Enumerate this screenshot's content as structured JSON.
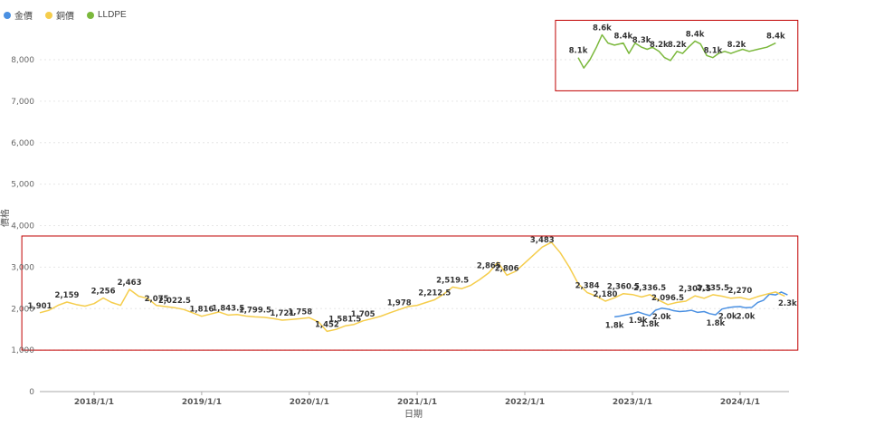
{
  "chart_data": {
    "type": "line",
    "xlabel": "日期",
    "ylabel": "價格",
    "xlim": [
      "2017-07-01",
      "2024-06-15"
    ],
    "ylim": [
      0,
      8000
    ],
    "yticks": [
      0,
      1000,
      2000,
      3000,
      4000,
      5000,
      6000,
      7000,
      8000
    ],
    "ytick_labels": [
      "0",
      "1,000",
      "2,000",
      "3,000",
      "4,000",
      "5,000",
      "6,000",
      "7,000",
      "8,000"
    ],
    "xticks": [
      "2018-01-01",
      "2019-01-01",
      "2020-01-01",
      "2021-01-01",
      "2022-01-01",
      "2023-01-01",
      "2024-01-01"
    ],
    "xtick_labels": [
      "2018/1/1",
      "2019/1/1",
      "2020/1/1",
      "2021/1/1",
      "2022/1/1",
      "2023/1/1",
      "2024/1/1"
    ],
    "grid": true,
    "legend_position": "top-left",
    "series": [
      {
        "name": "金價",
        "color": "#4a90e2",
        "points": [
          [
            "2022-11-01",
            1800
          ],
          [
            "2022-11-20",
            1820
          ],
          [
            "2022-12-10",
            1850
          ],
          [
            "2023-01-01",
            1880
          ],
          [
            "2023-01-20",
            1920
          ],
          [
            "2023-02-10",
            1870
          ],
          [
            "2023-03-01",
            1830
          ],
          [
            "2023-03-20",
            1960
          ],
          [
            "2023-04-10",
            2010
          ],
          [
            "2023-05-01",
            1990
          ],
          [
            "2023-05-20",
            1950
          ],
          [
            "2023-06-10",
            1930
          ],
          [
            "2023-07-01",
            1940
          ],
          [
            "2023-07-20",
            1960
          ],
          [
            "2023-08-10",
            1910
          ],
          [
            "2023-09-01",
            1930
          ],
          [
            "2023-09-20",
            1880
          ],
          [
            "2023-10-10",
            1850
          ],
          [
            "2023-11-01",
            1990
          ],
          [
            "2023-11-20",
            2020
          ],
          [
            "2023-12-10",
            2040
          ],
          [
            "2024-01-01",
            2050
          ],
          [
            "2024-01-20",
            2020
          ],
          [
            "2024-02-10",
            2030
          ],
          [
            "2024-03-01",
            2150
          ],
          [
            "2024-03-20",
            2200
          ],
          [
            "2024-04-10",
            2350
          ],
          [
            "2024-05-01",
            2330
          ],
          [
            "2024-05-20",
            2400
          ],
          [
            "2024-06-10",
            2330
          ]
        ]
      },
      {
        "name": "銅價",
        "color": "#f5cd4c",
        "points": [
          [
            "2017-07-01",
            1901
          ],
          [
            "2017-08-01",
            1960
          ],
          [
            "2017-09-01",
            2080
          ],
          [
            "2017-10-01",
            2159
          ],
          [
            "2017-11-01",
            2100
          ],
          [
            "2017-12-01",
            2060
          ],
          [
            "2018-01-01",
            2120
          ],
          [
            "2018-02-01",
            2256
          ],
          [
            "2018-03-01",
            2150
          ],
          [
            "2018-04-01",
            2080
          ],
          [
            "2018-05-01",
            2463
          ],
          [
            "2018-06-01",
            2300
          ],
          [
            "2018-07-01",
            2250
          ],
          [
            "2018-08-01",
            2075
          ],
          [
            "2018-09-01",
            2050
          ],
          [
            "2018-10-01",
            2022.5
          ],
          [
            "2018-11-01",
            1980
          ],
          [
            "2018-12-01",
            1900
          ],
          [
            "2019-01-01",
            1816
          ],
          [
            "2019-02-01",
            1870
          ],
          [
            "2019-03-01",
            1920
          ],
          [
            "2019-04-01",
            1843.5
          ],
          [
            "2019-05-01",
            1860
          ],
          [
            "2019-06-01",
            1820
          ],
          [
            "2019-07-01",
            1799.5
          ],
          [
            "2019-08-01",
            1790
          ],
          [
            "2019-09-01",
            1760
          ],
          [
            "2019-10-01",
            1721
          ],
          [
            "2019-11-01",
            1740
          ],
          [
            "2019-12-01",
            1758
          ],
          [
            "2020-01-01",
            1780
          ],
          [
            "2020-02-01",
            1680
          ],
          [
            "2020-03-01",
            1452
          ],
          [
            "2020-04-01",
            1500
          ],
          [
            "2020-05-01",
            1581.5
          ],
          [
            "2020-06-01",
            1620
          ],
          [
            "2020-07-01",
            1705
          ],
          [
            "2020-08-01",
            1760
          ],
          [
            "2020-09-01",
            1820
          ],
          [
            "2020-10-01",
            1900
          ],
          [
            "2020-11-01",
            1978
          ],
          [
            "2020-12-01",
            2050
          ],
          [
            "2021-01-01",
            2080
          ],
          [
            "2021-02-01",
            2150
          ],
          [
            "2021-03-01",
            2212.5
          ],
          [
            "2021-04-01",
            2350
          ],
          [
            "2021-05-01",
            2519.5
          ],
          [
            "2021-06-01",
            2480
          ],
          [
            "2021-07-01",
            2560
          ],
          [
            "2021-08-01",
            2700
          ],
          [
            "2021-09-01",
            2865
          ],
          [
            "2021-10-01",
            3120
          ],
          [
            "2021-11-01",
            2806
          ],
          [
            "2021-12-01",
            2900
          ],
          [
            "2022-01-01",
            3100
          ],
          [
            "2022-02-01",
            3300
          ],
          [
            "2022-03-01",
            3483
          ],
          [
            "2022-04-01",
            3600
          ],
          [
            "2022-05-01",
            3350
          ],
          [
            "2022-06-01",
            3000
          ],
          [
            "2022-07-01",
            2600
          ],
          [
            "2022-08-01",
            2384
          ],
          [
            "2022-09-01",
            2300
          ],
          [
            "2022-10-01",
            2180
          ],
          [
            "2022-11-01",
            2260
          ],
          [
            "2022-12-01",
            2360.5
          ],
          [
            "2023-01-01",
            2340
          ],
          [
            "2023-02-01",
            2280
          ],
          [
            "2023-03-01",
            2336.5
          ],
          [
            "2023-04-01",
            2200
          ],
          [
            "2023-05-01",
            2096.5
          ],
          [
            "2023-06-01",
            2150
          ],
          [
            "2023-07-01",
            2180
          ],
          [
            "2023-08-01",
            2307.5
          ],
          [
            "2023-09-01",
            2250
          ],
          [
            "2023-10-01",
            2335.5
          ],
          [
            "2023-11-01",
            2300
          ],
          [
            "2023-12-01",
            2250
          ],
          [
            "2024-01-01",
            2270
          ],
          [
            "2024-02-01",
            2220
          ],
          [
            "2024-03-01",
            2290
          ],
          [
            "2024-04-01",
            2350
          ],
          [
            "2024-05-01",
            2400
          ],
          [
            "2024-06-01",
            2300
          ]
        ]
      },
      {
        "name": "LLDPE",
        "color": "#7bb83c",
        "points": [
          [
            "2022-07-01",
            8050
          ],
          [
            "2022-07-20",
            7800
          ],
          [
            "2022-08-10",
            8000
          ],
          [
            "2022-09-01",
            8300
          ],
          [
            "2022-09-20",
            8600
          ],
          [
            "2022-10-10",
            8400
          ],
          [
            "2022-11-01",
            8350
          ],
          [
            "2022-12-01",
            8400
          ],
          [
            "2022-12-20",
            8150
          ],
          [
            "2023-01-10",
            8400
          ],
          [
            "2023-02-01",
            8300
          ],
          [
            "2023-02-20",
            8250
          ],
          [
            "2023-03-10",
            8300
          ],
          [
            "2023-04-01",
            8200
          ],
          [
            "2023-04-20",
            8050
          ],
          [
            "2023-05-10",
            7980
          ],
          [
            "2023-06-01",
            8200
          ],
          [
            "2023-06-20",
            8150
          ],
          [
            "2023-07-10",
            8300
          ],
          [
            "2023-08-01",
            8450
          ],
          [
            "2023-08-20",
            8380
          ],
          [
            "2023-09-10",
            8100
          ],
          [
            "2023-10-01",
            8050
          ],
          [
            "2023-10-20",
            8150
          ],
          [
            "2023-11-10",
            8200
          ],
          [
            "2023-12-01",
            8150
          ],
          [
            "2023-12-20",
            8200
          ],
          [
            "2024-01-10",
            8250
          ],
          [
            "2024-02-01",
            8200
          ],
          [
            "2024-03-01",
            8250
          ],
          [
            "2024-04-01",
            8300
          ],
          [
            "2024-05-01",
            8400
          ]
        ]
      }
    ],
    "annotations": [
      {
        "series": "銅價",
        "x": "2017-07-01",
        "y": 1901,
        "text": "1,901"
      },
      {
        "series": "銅價",
        "x": "2017-10-01",
        "y": 2159,
        "text": "2,159"
      },
      {
        "series": "銅價",
        "x": "2018-02-01",
        "y": 2256,
        "text": "2,256"
      },
      {
        "series": "銅價",
        "x": "2018-05-01",
        "y": 2463,
        "text": "2,463"
      },
      {
        "series": "銅價",
        "x": "2018-08-01",
        "y": 2075,
        "text": "2,075"
      },
      {
        "series": "銅價",
        "x": "2018-10-01",
        "y": 2022.5,
        "text": "2,022.5"
      },
      {
        "series": "銅價",
        "x": "2019-01-01",
        "y": 1816,
        "text": "1,816"
      },
      {
        "series": "銅價",
        "x": "2019-04-01",
        "y": 1843.5,
        "text": "1,843.5"
      },
      {
        "series": "銅價",
        "x": "2019-07-01",
        "y": 1799.5,
        "text": "1,799.5"
      },
      {
        "series": "銅價",
        "x": "2019-10-01",
        "y": 1721,
        "text": "1,721"
      },
      {
        "series": "銅價",
        "x": "2019-12-01",
        "y": 1758,
        "text": "1,758"
      },
      {
        "series": "銅價",
        "x": "2020-03-01",
        "y": 1452,
        "text": "1,452"
      },
      {
        "series": "銅價",
        "x": "2020-05-01",
        "y": 1581.5,
        "text": "1,581.5"
      },
      {
        "series": "銅價",
        "x": "2020-07-01",
        "y": 1705,
        "text": "1,705"
      },
      {
        "series": "銅價",
        "x": "2020-11-01",
        "y": 1978,
        "text": "1,978"
      },
      {
        "series": "銅價",
        "x": "2021-03-01",
        "y": 2212.5,
        "text": "2,212.5"
      },
      {
        "series": "銅價",
        "x": "2021-05-01",
        "y": 2519.5,
        "text": "2,519.5"
      },
      {
        "series": "銅價",
        "x": "2021-09-01",
        "y": 2865,
        "text": "2,865"
      },
      {
        "series": "銅價",
        "x": "2021-11-01",
        "y": 2806,
        "text": "2,806"
      },
      {
        "series": "銅價",
        "x": "2022-03-01",
        "y": 3483,
        "text": "3,483"
      },
      {
        "series": "銅價",
        "x": "2022-08-01",
        "y": 2384,
        "text": "2,384"
      },
      {
        "series": "銅價",
        "x": "2022-10-01",
        "y": 2180,
        "text": "2,180"
      },
      {
        "series": "銅價",
        "x": "2022-12-01",
        "y": 2360.5,
        "text": "2,360.5"
      },
      {
        "series": "銅價",
        "x": "2023-03-01",
        "y": 2336.5,
        "text": "2,336.5"
      },
      {
        "series": "銅價",
        "x": "2023-05-01",
        "y": 2096.5,
        "text": "2,096.5"
      },
      {
        "series": "銅價",
        "x": "2023-08-01",
        "y": 2307.5,
        "text": "2,307.5"
      },
      {
        "series": "銅價",
        "x": "2023-10-01",
        "y": 2335.5,
        "text": "2,335.5"
      },
      {
        "series": "銅價",
        "x": "2024-01-01",
        "y": 2270,
        "text": "2,270"
      },
      {
        "series": "金價",
        "x": "2022-11-01",
        "y": 1800,
        "text": "1.8k"
      },
      {
        "series": "金價",
        "x": "2023-01-20",
        "y": 1920,
        "text": "1.9k"
      },
      {
        "series": "金價",
        "x": "2023-03-01",
        "y": 1830,
        "text": "1.8k"
      },
      {
        "series": "金價",
        "x": "2023-04-10",
        "y": 2010,
        "text": "2.0k"
      },
      {
        "series": "金價",
        "x": "2023-10-10",
        "y": 1850,
        "text": "1.8k"
      },
      {
        "series": "金價",
        "x": "2023-11-20",
        "y": 2020,
        "text": "2.0k"
      },
      {
        "series": "金價",
        "x": "2024-01-20",
        "y": 2020,
        "text": "2.0k"
      },
      {
        "series": "金價",
        "x": "2024-06-10",
        "y": 2330,
        "text": "2.3k"
      },
      {
        "series": "LLDPE",
        "x": "2022-07-01",
        "y": 8050,
        "text": "8.1k"
      },
      {
        "series": "LLDPE",
        "x": "2022-09-20",
        "y": 8600,
        "text": "8.6k"
      },
      {
        "series": "LLDPE",
        "x": "2022-12-01",
        "y": 8400,
        "text": "8.4k"
      },
      {
        "series": "LLDPE",
        "x": "2023-02-01",
        "y": 8300,
        "text": "8.3k"
      },
      {
        "series": "LLDPE",
        "x": "2023-04-01",
        "y": 8200,
        "text": "8.2k"
      },
      {
        "series": "LLDPE",
        "x": "2023-06-01",
        "y": 8200,
        "text": "8.2k"
      },
      {
        "series": "LLDPE",
        "x": "2023-08-01",
        "y": 8450,
        "text": "8.4k"
      },
      {
        "series": "LLDPE",
        "x": "2023-10-01",
        "y": 8050,
        "text": "8.1k"
      },
      {
        "series": "LLDPE",
        "x": "2023-12-20",
        "y": 8200,
        "text": "8.2k"
      },
      {
        "series": "LLDPE",
        "x": "2024-05-01",
        "y": 8400,
        "text": "8.4k"
      }
    ],
    "highlight_boxes": [
      {
        "color": "#c00000",
        "x": [
          "2017-05-01",
          "2024-07-15"
        ],
        "y": [
          1000,
          3750
        ]
      },
      {
        "color": "#c00000",
        "x": [
          "2022-04-15",
          "2024-07-15"
        ],
        "y": [
          7250,
          8950
        ]
      }
    ]
  }
}
